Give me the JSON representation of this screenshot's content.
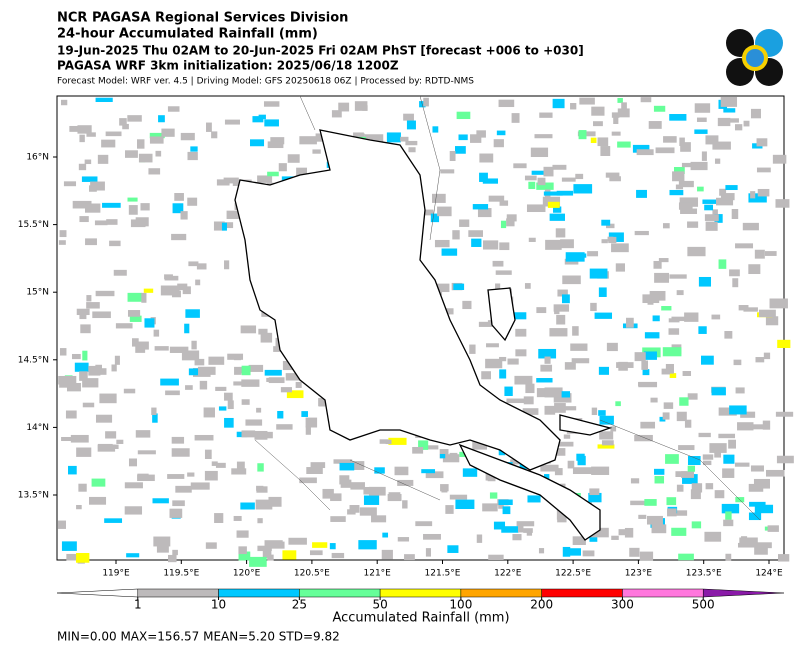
{
  "header": {
    "title": "NCR PAGASA Regional Services Division",
    "subtitle": "24-hour Accumulated Rainfall (mm)",
    "period": "19-Jun-2025 Thu 02AM to 20-Jun-2025 Fri 02AM PhST [forecast +006 to +030]",
    "init": "PAGASA WRF 3km initialization: 2025/06/18 1200Z",
    "model": "Forecast Model: WRF ver. 4.5 | Driving Model: GFS 20250618 06Z | Processed by: RDTD-NMS"
  },
  "map": {
    "lon_labels": [
      "119°E",
      "119.5°E",
      "120°E",
      "120.5°E",
      "121°E",
      "121.5°E",
      "122°E",
      "122.5°E",
      "123°E",
      "123.5°E",
      "124°E"
    ],
    "lat_labels": [
      "16°N",
      "15.5°N",
      "15°N",
      "14.5°N",
      "14°N",
      "13.5°N"
    ]
  },
  "colorbar": {
    "levels": [
      1,
      10,
      25,
      50,
      100,
      200,
      300,
      500
    ],
    "colors": [
      "#ffffff",
      "#bdbabb",
      "#00c8ff",
      "#66ff99",
      "#ffff00",
      "#ffa500",
      "#ff0000",
      "#ff77dd",
      "#8a1aa8"
    ],
    "label": "Accumulated Rainfall (mm)"
  },
  "stats": "MIN=0.00   MAX=156.57   MEAN=5.20   STD=9.82"
}
